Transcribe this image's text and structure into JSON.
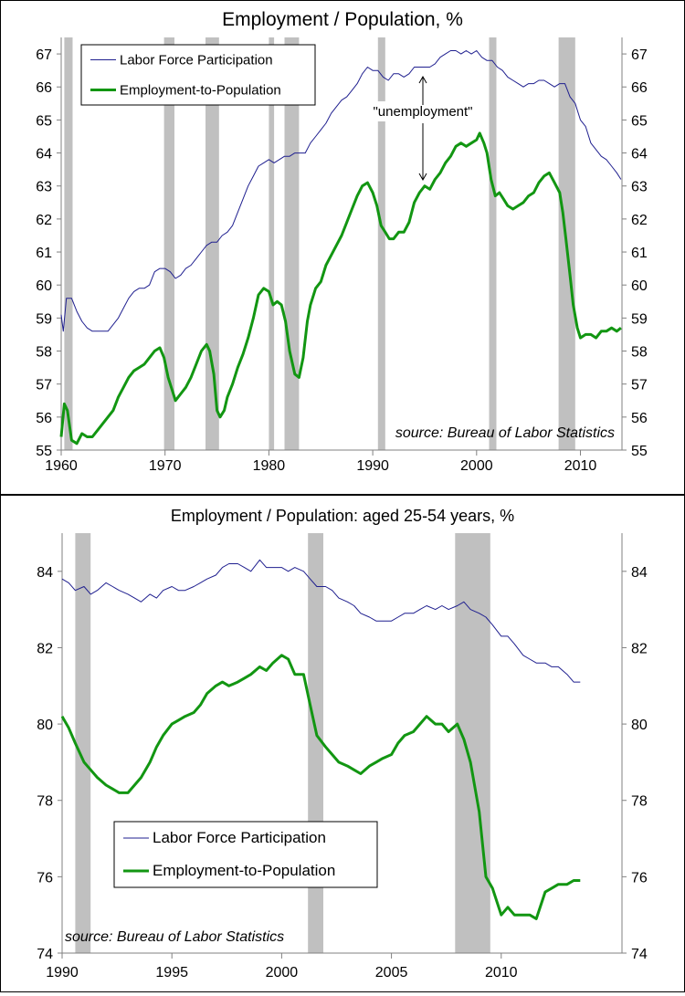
{
  "colors": {
    "lfp": "#1f1f8f",
    "emp": "#129612",
    "recession": "#c0c0c0",
    "axis": "#808080"
  },
  "chart_data": [
    {
      "type": "line",
      "title": "Employment / Population, %",
      "source": "source: Bureau of Labor Statistics",
      "annotation": "\"unemployment\"",
      "xlim": [
        1960,
        2014
      ],
      "ylim": [
        55,
        67.5
      ],
      "xticks": [
        1960,
        1970,
        1980,
        1990,
        2000,
        2010
      ],
      "yticks": [
        55,
        56,
        57,
        58,
        59,
        60,
        61,
        62,
        63,
        64,
        65,
        66,
        67
      ],
      "legend_position": "top-left",
      "recessions": [
        [
          1960.3,
          1961.1
        ],
        [
          1969.9,
          1970.9
        ],
        [
          1973.9,
          1975.2
        ],
        [
          1980.0,
          1980.5
        ],
        [
          1981.5,
          1982.9
        ],
        [
          1990.5,
          1991.2
        ],
        [
          2001.2,
          2001.9
        ],
        [
          2007.9,
          2009.5
        ]
      ],
      "series": [
        {
          "name": "Labor Force Participation",
          "key": "lfp",
          "x": [
            1960.0,
            1960.2,
            1960.5,
            1961.0,
            1961.5,
            1962.0,
            1962.5,
            1963.0,
            1963.5,
            1964.0,
            1964.5,
            1965.0,
            1965.5,
            1966.0,
            1966.5,
            1967.0,
            1967.5,
            1968.0,
            1968.5,
            1969.0,
            1969.5,
            1970.0,
            1970.5,
            1971.0,
            1971.5,
            1972.0,
            1972.5,
            1973.0,
            1973.5,
            1974.0,
            1974.5,
            1975.0,
            1975.5,
            1976.0,
            1976.5,
            1977.0,
            1977.5,
            1978.0,
            1978.5,
            1979.0,
            1979.5,
            1980.0,
            1980.5,
            1981.0,
            1981.5,
            1982.0,
            1982.5,
            1983.0,
            1983.5,
            1984.0,
            1984.5,
            1985.0,
            1985.5,
            1986.0,
            1986.5,
            1987.0,
            1987.5,
            1988.0,
            1988.5,
            1989.0,
            1989.5,
            1990.0,
            1990.5,
            1991.0,
            1991.5,
            1992.0,
            1992.5,
            1993.0,
            1993.5,
            1994.0,
            1994.5,
            1995.0,
            1995.5,
            1996.0,
            1996.5,
            1997.0,
            1997.5,
            1998.0,
            1998.5,
            1999.0,
            1999.5,
            2000.0,
            2000.5,
            2001.0,
            2001.5,
            2002.0,
            2002.5,
            2003.0,
            2003.5,
            2004.0,
            2004.5,
            2005.0,
            2005.5,
            2006.0,
            2006.5,
            2007.0,
            2007.5,
            2008.0,
            2008.5,
            2009.0,
            2009.5,
            2010.0,
            2010.5,
            2011.0,
            2011.5,
            2012.0,
            2012.5,
            2013.0,
            2013.5,
            2013.9
          ],
          "values": [
            59.1,
            58.6,
            59.6,
            59.6,
            59.2,
            58.9,
            58.7,
            58.6,
            58.6,
            58.6,
            58.6,
            58.8,
            59.0,
            59.3,
            59.6,
            59.8,
            59.9,
            59.9,
            60.0,
            60.4,
            60.5,
            60.5,
            60.4,
            60.2,
            60.3,
            60.5,
            60.6,
            60.8,
            61.0,
            61.2,
            61.3,
            61.3,
            61.5,
            61.6,
            61.8,
            62.2,
            62.6,
            63.0,
            63.3,
            63.6,
            63.7,
            63.8,
            63.7,
            63.8,
            63.9,
            63.9,
            64.0,
            64.0,
            64.0,
            64.3,
            64.5,
            64.7,
            64.9,
            65.2,
            65.4,
            65.6,
            65.7,
            65.9,
            66.1,
            66.4,
            66.6,
            66.5,
            66.5,
            66.3,
            66.2,
            66.4,
            66.4,
            66.3,
            66.4,
            66.6,
            66.6,
            66.6,
            66.6,
            66.7,
            66.9,
            67.0,
            67.1,
            67.1,
            67.0,
            67.1,
            67.0,
            67.1,
            66.9,
            66.8,
            66.8,
            66.6,
            66.5,
            66.3,
            66.2,
            66.1,
            66.0,
            66.1,
            66.1,
            66.2,
            66.2,
            66.1,
            66.0,
            66.1,
            66.1,
            65.7,
            65.5,
            65.0,
            64.8,
            64.3,
            64.1,
            63.9,
            63.8,
            63.6,
            63.4,
            63.2
          ],
          "linewidth": 1
        },
        {
          "name": "Employment-to-Population",
          "key": "emp",
          "x": [
            1960.0,
            1960.3,
            1960.6,
            1961.0,
            1961.5,
            1962.0,
            1962.5,
            1963.0,
            1963.5,
            1964.0,
            1964.5,
            1965.0,
            1965.5,
            1966.0,
            1966.5,
            1967.0,
            1967.5,
            1968.0,
            1968.5,
            1969.0,
            1969.5,
            1969.9,
            1970.3,
            1970.7,
            1971.0,
            1971.5,
            1972.0,
            1972.5,
            1973.0,
            1973.5,
            1974.0,
            1974.3,
            1974.7,
            1975.0,
            1975.3,
            1975.7,
            1976.0,
            1976.5,
            1977.0,
            1977.5,
            1978.0,
            1978.5,
            1979.0,
            1979.5,
            1980.0,
            1980.4,
            1980.8,
            1981.2,
            1981.6,
            1982.0,
            1982.5,
            1982.9,
            1983.3,
            1983.7,
            1984.0,
            1984.5,
            1985.0,
            1985.5,
            1986.0,
            1986.5,
            1987.0,
            1987.5,
            1988.0,
            1988.5,
            1989.0,
            1989.5,
            1990.0,
            1990.4,
            1990.8,
            1991.2,
            1991.6,
            1992.0,
            1992.5,
            1993.0,
            1993.5,
            1994.0,
            1994.5,
            1995.0,
            1995.5,
            1996.0,
            1996.5,
            1997.0,
            1997.5,
            1998.0,
            1998.5,
            1999.0,
            1999.5,
            2000.0,
            2000.3,
            2000.7,
            2001.0,
            2001.4,
            2001.8,
            2002.2,
            2002.6,
            2003.0,
            2003.5,
            2004.0,
            2004.5,
            2005.0,
            2005.5,
            2006.0,
            2006.5,
            2007.0,
            2007.5,
            2008.0,
            2008.3,
            2008.6,
            2009.0,
            2009.3,
            2009.7,
            2010.0,
            2010.5,
            2011.0,
            2011.5,
            2012.0,
            2012.5,
            2013.0,
            2013.5,
            2013.9
          ],
          "values": [
            55.4,
            56.4,
            56.2,
            55.3,
            55.2,
            55.5,
            55.4,
            55.4,
            55.6,
            55.8,
            56.0,
            56.2,
            56.6,
            56.9,
            57.2,
            57.4,
            57.5,
            57.6,
            57.8,
            58.0,
            58.1,
            57.8,
            57.2,
            56.8,
            56.5,
            56.7,
            56.9,
            57.2,
            57.6,
            58.0,
            58.2,
            58.0,
            57.3,
            56.2,
            56.0,
            56.2,
            56.6,
            57.0,
            57.5,
            57.9,
            58.4,
            59.0,
            59.7,
            59.9,
            59.8,
            59.4,
            59.5,
            59.4,
            58.9,
            58.0,
            57.3,
            57.2,
            57.8,
            58.9,
            59.4,
            59.9,
            60.1,
            60.6,
            60.9,
            61.2,
            61.5,
            61.9,
            62.3,
            62.7,
            63.0,
            63.1,
            62.8,
            62.4,
            61.8,
            61.6,
            61.4,
            61.4,
            61.6,
            61.6,
            61.9,
            62.5,
            62.8,
            63.0,
            62.9,
            63.2,
            63.4,
            63.7,
            63.9,
            64.2,
            64.3,
            64.2,
            64.3,
            64.4,
            64.6,
            64.3,
            64.0,
            63.2,
            62.7,
            62.8,
            62.6,
            62.4,
            62.3,
            62.4,
            62.5,
            62.7,
            62.8,
            63.1,
            63.3,
            63.4,
            63.1,
            62.8,
            62.2,
            61.4,
            60.3,
            59.4,
            58.7,
            58.4,
            58.5,
            58.5,
            58.4,
            58.6,
            58.6,
            58.7,
            58.6,
            58.7
          ],
          "linewidth": 3
        }
      ]
    },
    {
      "type": "line",
      "title": "Employment / Population: aged 25-54 years, %",
      "source": "source: Bureau of Labor Statistics",
      "xlim": [
        1990,
        2015.5
      ],
      "ylim": [
        74,
        85
      ],
      "xticks": [
        1990,
        1995,
        2000,
        2005,
        2010
      ],
      "yticks": [
        74,
        76,
        78,
        80,
        82,
        84
      ],
      "legend_position": "lower-left",
      "recessions": [
        [
          1990.6,
          1991.3
        ],
        [
          2001.2,
          2001.9
        ],
        [
          2007.9,
          2009.5
        ]
      ],
      "series": [
        {
          "name": "Labor Force Participation",
          "key": "lfp",
          "x": [
            1990.0,
            1990.3,
            1990.6,
            1991.0,
            1991.3,
            1991.6,
            1992.0,
            1992.3,
            1992.6,
            1993.0,
            1993.3,
            1993.6,
            1994.0,
            1994.3,
            1994.6,
            1995.0,
            1995.3,
            1995.6,
            1996.0,
            1996.3,
            1996.6,
            1997.0,
            1997.3,
            1997.6,
            1998.0,
            1998.3,
            1998.6,
            1999.0,
            1999.3,
            1999.6,
            2000.0,
            2000.3,
            2000.6,
            2001.0,
            2001.3,
            2001.6,
            2002.0,
            2002.3,
            2002.6,
            2003.0,
            2003.3,
            2003.6,
            2004.0,
            2004.3,
            2004.6,
            2005.0,
            2005.3,
            2005.6,
            2006.0,
            2006.3,
            2006.6,
            2007.0,
            2007.3,
            2007.6,
            2008.0,
            2008.3,
            2008.6,
            2009.0,
            2009.3,
            2009.6,
            2010.0,
            2010.3,
            2010.6,
            2011.0,
            2011.3,
            2011.6,
            2012.0,
            2012.3,
            2012.6,
            2013.0,
            2013.3,
            2013.6
          ],
          "values": [
            83.8,
            83.7,
            83.5,
            83.6,
            83.4,
            83.5,
            83.7,
            83.6,
            83.5,
            83.4,
            83.3,
            83.2,
            83.4,
            83.3,
            83.5,
            83.6,
            83.5,
            83.5,
            83.6,
            83.7,
            83.8,
            83.9,
            84.1,
            84.2,
            84.2,
            84.1,
            84.0,
            84.3,
            84.1,
            84.1,
            84.1,
            84.0,
            84.1,
            84.0,
            83.8,
            83.6,
            83.6,
            83.5,
            83.3,
            83.2,
            83.1,
            82.9,
            82.8,
            82.7,
            82.7,
            82.7,
            82.8,
            82.9,
            82.9,
            83.0,
            83.1,
            83.0,
            83.1,
            83.0,
            83.1,
            83.2,
            83.0,
            82.9,
            82.8,
            82.6,
            82.3,
            82.3,
            82.1,
            81.8,
            81.7,
            81.6,
            81.6,
            81.5,
            81.5,
            81.3,
            81.1,
            81.1
          ],
          "linewidth": 1
        },
        {
          "name": "Employment-to-Population",
          "key": "emp",
          "x": [
            1990.0,
            1990.3,
            1990.6,
            1991.0,
            1991.3,
            1991.6,
            1992.0,
            1992.3,
            1992.6,
            1993.0,
            1993.3,
            1993.6,
            1994.0,
            1994.3,
            1994.6,
            1995.0,
            1995.3,
            1995.6,
            1996.0,
            1996.3,
            1996.6,
            1997.0,
            1997.3,
            1997.6,
            1998.0,
            1998.3,
            1998.6,
            1999.0,
            1999.3,
            1999.6,
            2000.0,
            2000.3,
            2000.6,
            2001.0,
            2001.3,
            2001.6,
            2002.0,
            2002.3,
            2002.6,
            2003.0,
            2003.3,
            2003.6,
            2004.0,
            2004.3,
            2004.6,
            2005.0,
            2005.3,
            2005.6,
            2006.0,
            2006.3,
            2006.6,
            2007.0,
            2007.3,
            2007.6,
            2008.0,
            2008.3,
            2008.6,
            2009.0,
            2009.3,
            2009.6,
            2010.0,
            2010.3,
            2010.6,
            2011.0,
            2011.3,
            2011.6,
            2012.0,
            2012.3,
            2012.6,
            2013.0,
            2013.3,
            2013.6
          ],
          "values": [
            80.2,
            79.9,
            79.5,
            79.0,
            78.8,
            78.6,
            78.4,
            78.3,
            78.2,
            78.2,
            78.4,
            78.6,
            79.0,
            79.4,
            79.7,
            80.0,
            80.1,
            80.2,
            80.3,
            80.5,
            80.8,
            81.0,
            81.1,
            81.0,
            81.1,
            81.2,
            81.3,
            81.5,
            81.4,
            81.6,
            81.8,
            81.7,
            81.3,
            81.3,
            80.5,
            79.7,
            79.4,
            79.2,
            79.0,
            78.9,
            78.8,
            78.7,
            78.9,
            79.0,
            79.1,
            79.2,
            79.5,
            79.7,
            79.8,
            80.0,
            80.2,
            80.0,
            80.0,
            79.8,
            80.0,
            79.6,
            79.0,
            77.7,
            76.0,
            75.7,
            75.0,
            75.2,
            75.0,
            75.0,
            75.0,
            74.9,
            75.6,
            75.7,
            75.8,
            75.8,
            75.9,
            75.9
          ],
          "linewidth": 3
        }
      ]
    }
  ]
}
